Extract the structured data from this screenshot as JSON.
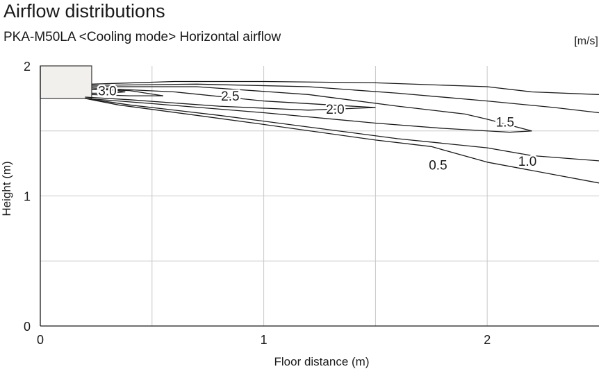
{
  "chart_data": {
    "type": "contour",
    "title": "Airflow distributions",
    "subtitle": "PKA-M50LA <Cooling mode> Horizontal airflow",
    "unit": "[m/s]",
    "xlabel": "Floor distance (m)",
    "ylabel": "Height (m)",
    "xlim": [
      0,
      2.5
    ],
    "ylim": [
      0,
      2.0
    ],
    "xticks": [
      "0",
      "1",
      "2"
    ],
    "yticks": [
      "0",
      "1",
      "2"
    ],
    "grid": true,
    "unit_box": {
      "x": [
        0,
        0.23
      ],
      "y": [
        1.75,
        2.0
      ]
    },
    "contours": [
      {
        "value": 0.5,
        "label": "0.5",
        "upper": [
          [
            0.23,
            1.86
          ],
          [
            0.6,
            1.88
          ],
          [
            1.0,
            1.88
          ],
          [
            1.5,
            1.87
          ],
          [
            2.0,
            1.84
          ],
          [
            2.2,
            1.8
          ],
          [
            2.5,
            1.78
          ]
        ],
        "lower": [
          [
            0.2,
            1.75
          ],
          [
            0.35,
            1.7
          ],
          [
            0.7,
            1.62
          ],
          [
            1.0,
            1.55
          ],
          [
            1.5,
            1.43
          ],
          [
            1.75,
            1.38
          ],
          [
            2.0,
            1.26
          ],
          [
            2.5,
            1.1
          ]
        ]
      },
      {
        "value": 1.0,
        "label": "1.0",
        "upper": [
          [
            0.23,
            1.85
          ],
          [
            0.7,
            1.86
          ],
          [
            1.2,
            1.84
          ],
          [
            1.6,
            1.79
          ],
          [
            2.0,
            1.73
          ],
          [
            2.3,
            1.68
          ],
          [
            2.5,
            1.64
          ]
        ],
        "lower": [
          [
            0.2,
            1.75
          ],
          [
            0.4,
            1.7
          ],
          [
            0.8,
            1.62
          ],
          [
            1.2,
            1.53
          ],
          [
            1.6,
            1.44
          ],
          [
            2.0,
            1.37
          ],
          [
            2.2,
            1.31
          ],
          [
            2.5,
            1.27
          ]
        ]
      },
      {
        "value": 1.5,
        "label": "1.5",
        "upper": [
          [
            0.23,
            1.84
          ],
          [
            0.7,
            1.84
          ],
          [
            1.2,
            1.78
          ],
          [
            1.6,
            1.69
          ],
          [
            1.9,
            1.63
          ],
          [
            2.0,
            1.59
          ],
          [
            2.2,
            1.5
          ]
        ],
        "lower": [
          [
            0.2,
            1.75
          ],
          [
            0.5,
            1.71
          ],
          [
            1.0,
            1.64
          ],
          [
            1.5,
            1.56
          ],
          [
            1.8,
            1.52
          ],
          [
            2.1,
            1.49
          ],
          [
            2.2,
            1.5
          ]
        ]
      },
      {
        "value": 2.0,
        "label": "2.0",
        "upper": [
          [
            0.23,
            1.83
          ],
          [
            0.6,
            1.8
          ],
          [
            1.0,
            1.73
          ],
          [
            1.3,
            1.7
          ],
          [
            1.5,
            1.68
          ]
        ],
        "lower": [
          [
            0.2,
            1.76
          ],
          [
            0.4,
            1.74
          ],
          [
            0.8,
            1.69
          ],
          [
            1.2,
            1.66
          ],
          [
            1.5,
            1.68
          ]
        ]
      },
      {
        "value": 2.5,
        "label": "2.5",
        "upper": [
          [
            0.23,
            1.82
          ],
          [
            0.4,
            1.81
          ],
          [
            0.55,
            1.77
          ]
        ],
        "lower": [
          [
            0.23,
            1.78
          ],
          [
            0.4,
            1.77
          ],
          [
            0.55,
            1.77
          ]
        ]
      },
      {
        "value": 3.0,
        "label": "3.0",
        "upper": [
          [
            0.23,
            1.82
          ],
          [
            0.3,
            1.82
          ],
          [
            0.38,
            1.8
          ]
        ],
        "lower": [
          [
            0.23,
            1.79
          ],
          [
            0.3,
            1.79
          ],
          [
            0.38,
            1.8
          ]
        ]
      }
    ]
  }
}
